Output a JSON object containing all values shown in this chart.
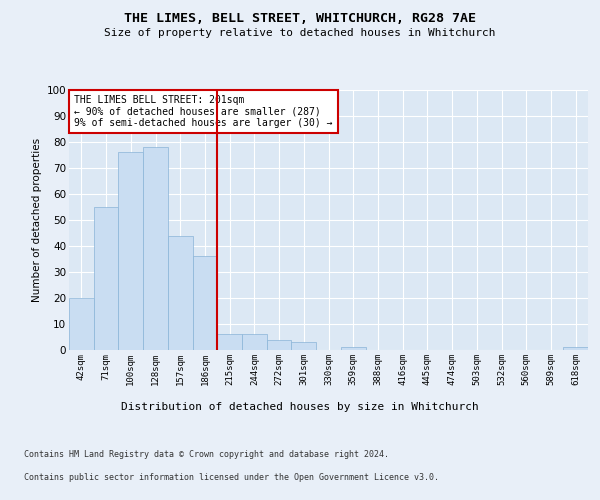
{
  "title1": "THE LIMES, BELL STREET, WHITCHURCH, RG28 7AE",
  "title2": "Size of property relative to detached houses in Whitchurch",
  "xlabel": "Distribution of detached houses by size in Whitchurch",
  "ylabel": "Number of detached properties",
  "categories": [
    "42sqm",
    "71sqm",
    "100sqm",
    "128sqm",
    "157sqm",
    "186sqm",
    "215sqm",
    "244sqm",
    "272sqm",
    "301sqm",
    "330sqm",
    "359sqm",
    "388sqm",
    "416sqm",
    "445sqm",
    "474sqm",
    "503sqm",
    "532sqm",
    "560sqm",
    "589sqm",
    "618sqm"
  ],
  "values": [
    20,
    55,
    76,
    78,
    44,
    36,
    6,
    6,
    4,
    3,
    0,
    1,
    0,
    0,
    0,
    0,
    0,
    0,
    0,
    0,
    1
  ],
  "bar_color": "#c9ddf2",
  "bar_edge_color": "#8ab4d8",
  "reference_line_x": 5.5,
  "reference_line_color": "#cc0000",
  "annotation_text": "THE LIMES BELL STREET: 201sqm\n← 90% of detached houses are smaller (287)\n9% of semi-detached houses are larger (30) →",
  "annotation_box_color": "white",
  "annotation_box_edge_color": "#cc0000",
  "ylim": [
    0,
    100
  ],
  "footer1": "Contains HM Land Registry data © Crown copyright and database right 2024.",
  "footer2": "Contains public sector information licensed under the Open Government Licence v3.0.",
  "background_color": "#e8eff8",
  "plot_background_color": "#dce8f4"
}
